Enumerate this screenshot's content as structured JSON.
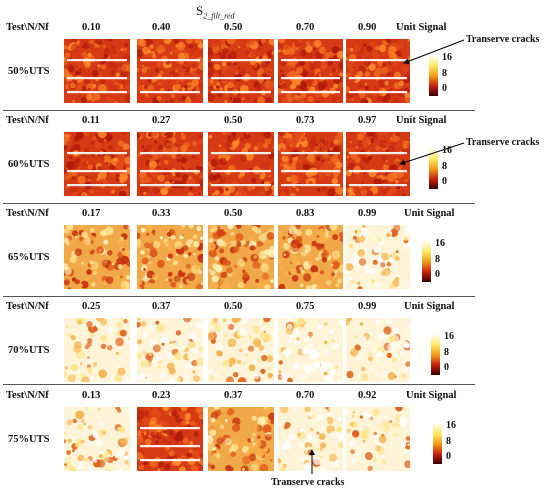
{
  "title": {
    "main": "S",
    "sub": "2_filt_red"
  },
  "header_label": "Test\\N/Nf",
  "unit_label": "Unit Signal",
  "colorbar_ticks": [
    "16",
    "8",
    "0"
  ],
  "annotation": "Transerve cracks",
  "colors": {
    "dense": "#d4300f",
    "sparse": "#f7c76a",
    "background": "#ffffff",
    "separator": "#555555"
  },
  "rows": [
    {
      "label": "50%UTS",
      "fractions": [
        "0.10",
        "0.40",
        "0.50",
        "0.70",
        "0.90"
      ]
    },
    {
      "label": "60%UTS",
      "fractions": [
        "0.11",
        "0.27",
        "0.50",
        "0.73",
        "0.97"
      ]
    },
    {
      "label": "65%UTS",
      "fractions": [
        "0.17",
        "0.33",
        "0.50",
        "0.83",
        "0.99"
      ]
    },
    {
      "label": "70%UTS",
      "fractions": [
        "0.25",
        "0.37",
        "0.50",
        "0.75",
        "0.99"
      ]
    },
    {
      "label": "75%UTS",
      "fractions": [
        "0.13",
        "0.23",
        "0.37",
        "0.70",
        "0.92"
      ]
    }
  ]
}
